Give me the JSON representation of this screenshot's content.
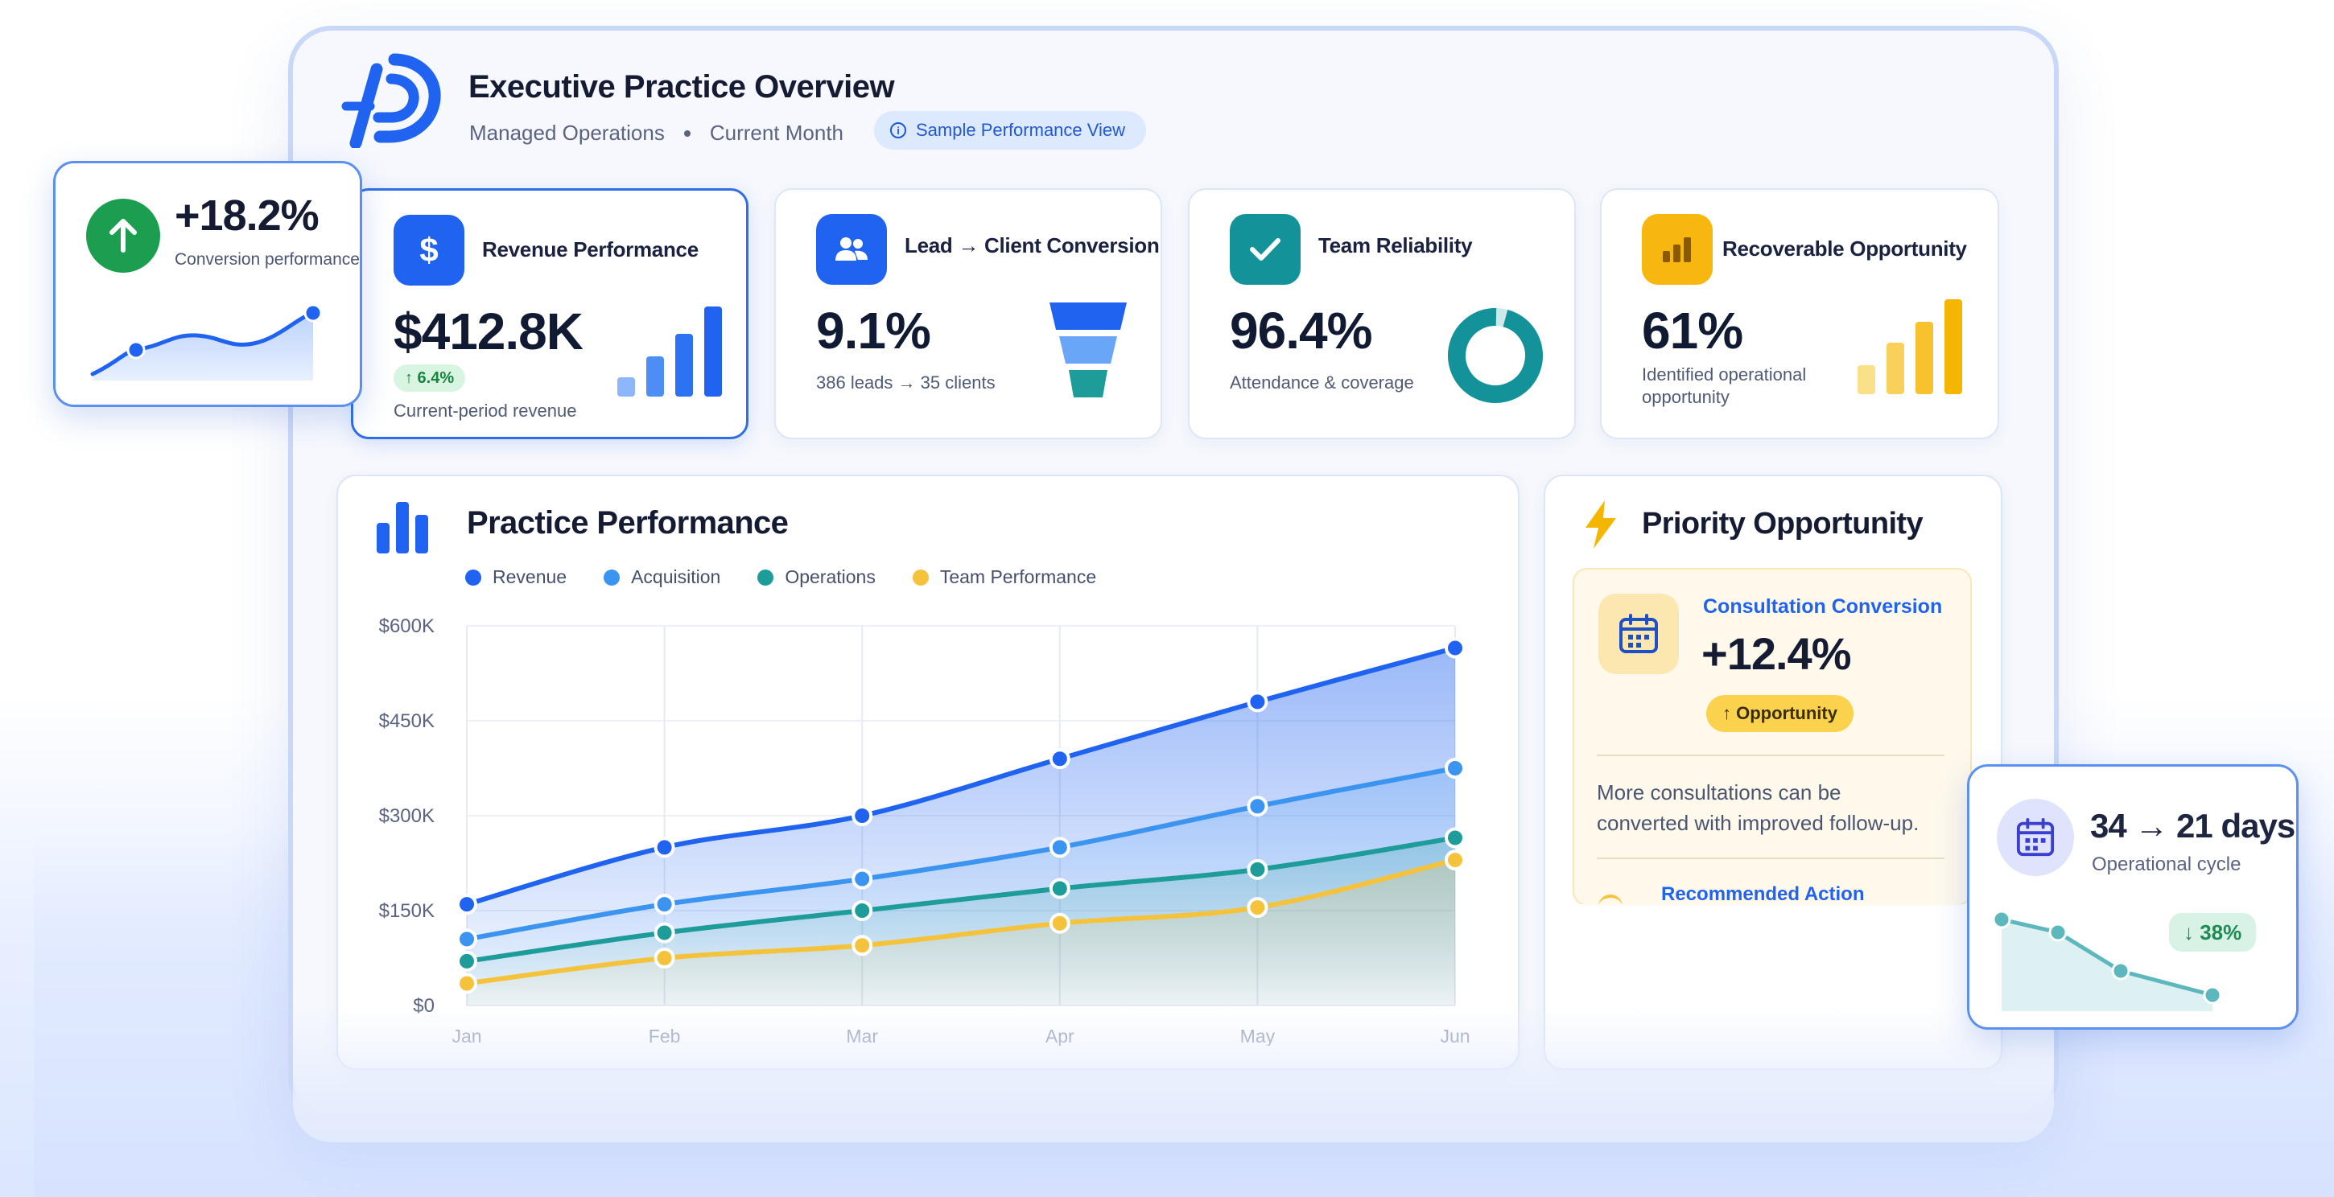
{
  "header": {
    "title": "Executive Practice Overview",
    "subtitle_left": "Managed Operations",
    "subtitle_right": "Current Month",
    "pill": "Sample Performance View"
  },
  "kpis": [
    {
      "label": "Revenue Performance",
      "value": "$412.8K",
      "badge": "↑ 6.4%",
      "sub": "Current-period revenue",
      "icon": "dollar-icon",
      "color": "#1f63f0"
    },
    {
      "label": "Lead → Client Conversion",
      "value": "9.1%",
      "sub": "386 leads → 35 clients",
      "icon": "users-icon",
      "color": "#1f63f0"
    },
    {
      "label": "Team Reliability",
      "value": "96.4%",
      "sub": "Attendance & coverage",
      "icon": "check-icon",
      "color": "#14929a"
    },
    {
      "label": "Recoverable Opportunity",
      "value": "61%",
      "sub_line1": "Identified operational",
      "sub_line2": "opportunity",
      "icon": "bar-chart-icon",
      "color": "#f5b100"
    }
  ],
  "main_chart": {
    "title": "Practice Performance",
    "legend": [
      "Revenue",
      "Acquisition",
      "Operations",
      "Team Performance"
    ]
  },
  "chart_data": {
    "type": "line",
    "categories": [
      "Jan",
      "Feb",
      "Mar",
      "Apr",
      "May",
      "Jun"
    ],
    "yticks": [
      "$600K",
      "$450K",
      "$300K",
      "$150K",
      "$0"
    ],
    "ylim": [
      0,
      600
    ],
    "series": [
      {
        "name": "Revenue",
        "color": "#1f63f0",
        "values": [
          160,
          250,
          300,
          390,
          480,
          565
        ]
      },
      {
        "name": "Acquisition",
        "color": "#3b94ef",
        "values": [
          105,
          160,
          200,
          250,
          315,
          375
        ]
      },
      {
        "name": "Operations",
        "color": "#1d9c9a",
        "values": [
          70,
          115,
          150,
          185,
          215,
          265
        ]
      },
      {
        "name": "Team Performance",
        "color": "#f5c33b",
        "values": [
          35,
          75,
          95,
          130,
          155,
          230
        ]
      }
    ],
    "grid": true
  },
  "priority": {
    "title": "Priority Opportunity",
    "card_label": "Consultation Conversion",
    "card_value": "+12.4%",
    "badge": "↑ Opportunity",
    "desc_line1": "More consultations can be",
    "desc_line2": "converted with improved follow-up.",
    "action_label": "Recommended Action"
  },
  "float_left": {
    "value": "+18.2%",
    "label": "Conversion performance"
  },
  "float_right": {
    "value": "34 → 21 days",
    "label": "Operational cycle",
    "badge": "↓ 38%"
  }
}
